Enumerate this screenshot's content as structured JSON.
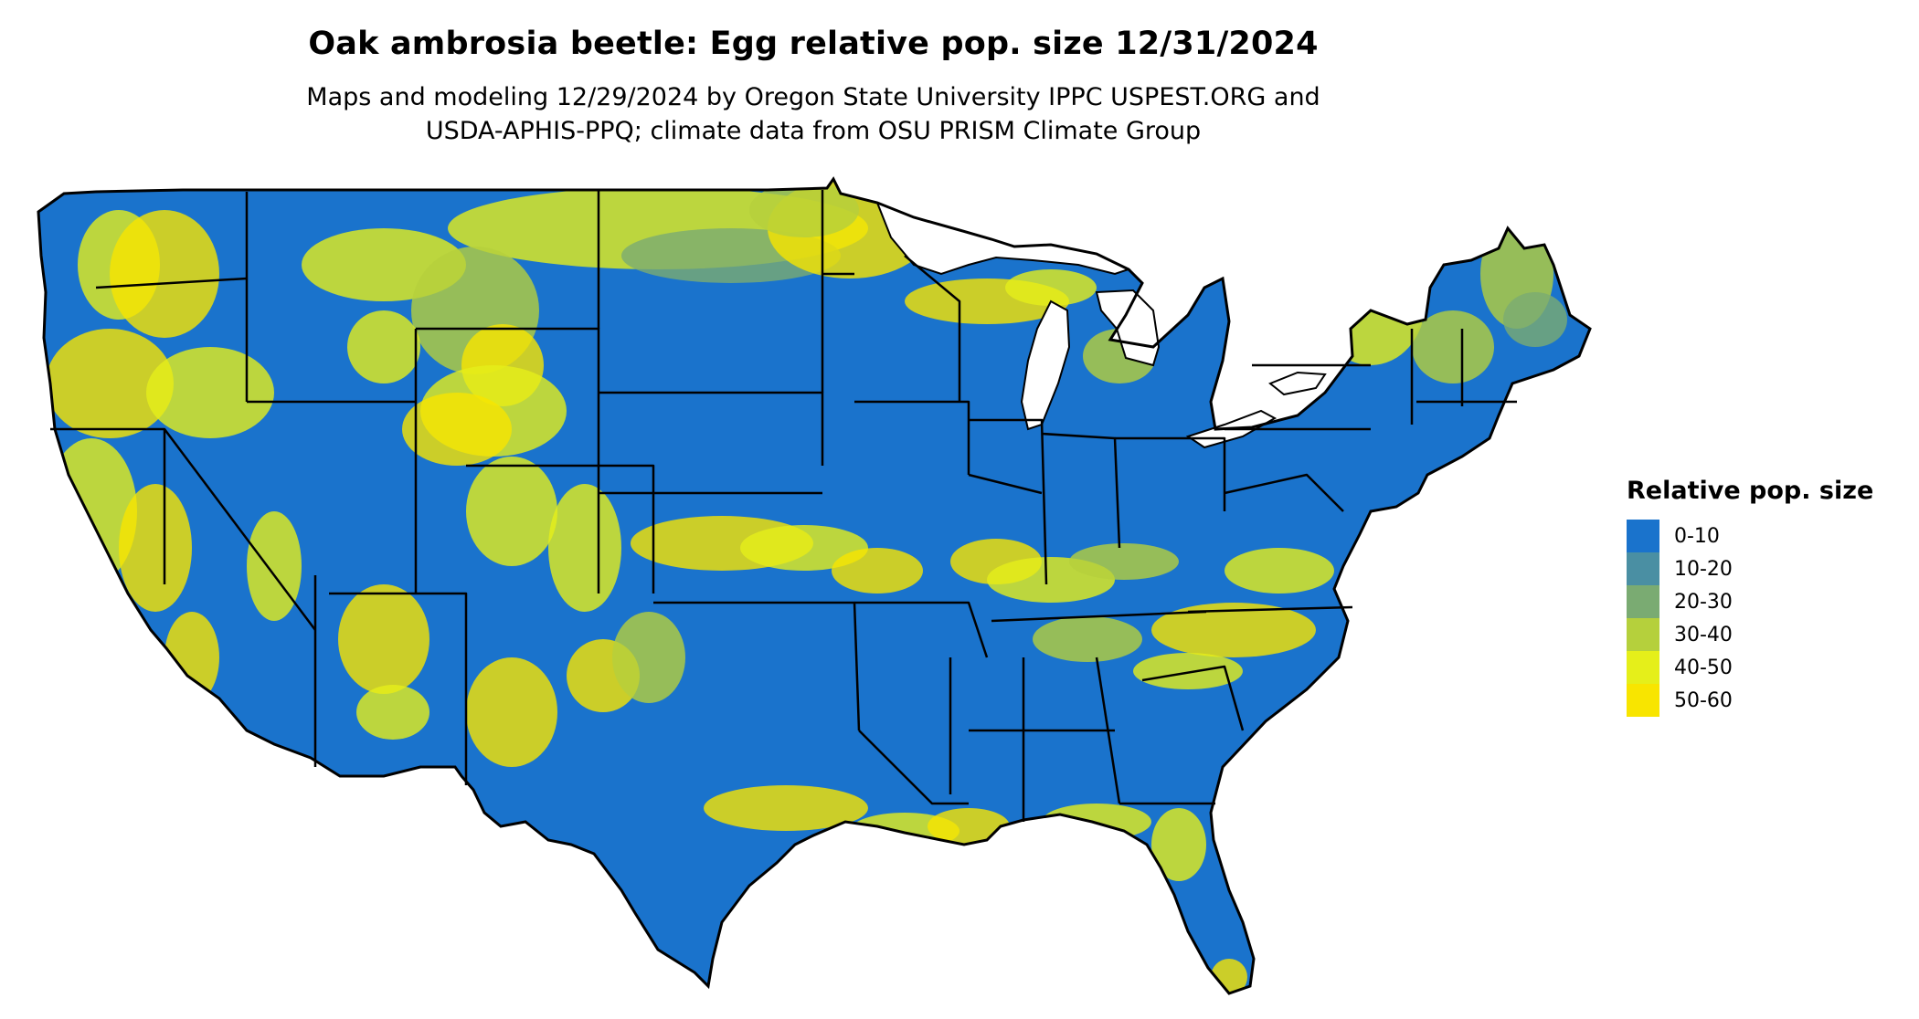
{
  "title": "Oak ambrosia beetle: Egg relative pop. size 12/31/2024",
  "subtitle_line1": "Maps and modeling 12/29/2024 by Oregon State University IPPC USPEST.ORG and",
  "subtitle_line2": "USDA-APHIS-PPQ; climate data from OSU PRISM Climate Group",
  "legend": {
    "title": "Relative pop. size",
    "items": [
      {
        "label": "0-10",
        "color": "#1a73cc"
      },
      {
        "label": "10-20",
        "color": "#4a8fa3"
      },
      {
        "label": "20-30",
        "color": "#7aab72"
      },
      {
        "label": "30-40",
        "color": "#b5d03c"
      },
      {
        "label": "40-50",
        "color": "#e5ef1a"
      },
      {
        "label": "50-60",
        "color": "#f8e500"
      }
    ]
  },
  "map": {
    "region": "Contiguous United States",
    "base_color": "#1a73cc",
    "border_color": "#000000",
    "lake_color": "#ffffff"
  }
}
